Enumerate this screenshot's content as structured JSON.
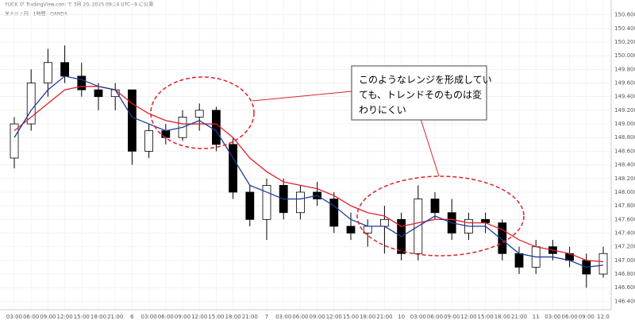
{
  "chart_data": {
    "type": "candlestick",
    "header": [
      "YUGK が TradingView.com で 3月 20, 2025 09:24 UTC+9 に公開",
      "米ドル / 円 · 1時間 · OANDA"
    ],
    "categories": [
      "03:00",
      "06:00",
      "09:00",
      "12:00",
      "15:00",
      "18:00",
      "21:00",
      "6",
      "03:00",
      "06:00",
      "09:00",
      "12:00",
      "15:00",
      "18:00",
      "21:00",
      "7",
      "03:00",
      "06:00",
      "09:00",
      "12:00",
      "15:00",
      "18:00",
      "21:00",
      "10",
      "03:00",
      "06:00",
      "09:00",
      "12:00",
      "15:00",
      "18:00",
      "21:00",
      "11",
      "03:00",
      "06:00",
      "09:00",
      "12:0"
    ],
    "open": [
      148.5,
      149.0,
      149.6,
      149.9,
      149.7,
      149.5,
      149.4,
      149.5,
      148.6,
      148.9,
      148.8,
      149.1,
      149.2,
      148.7,
      148.0,
      147.6,
      148.1,
      147.7,
      148.0,
      147.9,
      147.5,
      147.4,
      147.5,
      147.6,
      147.1,
      147.9,
      147.7,
      147.4,
      147.6,
      147.55,
      147.1,
      146.9,
      147.2,
      147.1,
      147.0,
      146.8
    ],
    "high": [
      149.1,
      149.8,
      150.1,
      150.15,
      149.9,
      149.6,
      149.6,
      149.5,
      149.0,
      149.0,
      149.2,
      149.3,
      149.25,
      148.8,
      148.1,
      148.2,
      148.2,
      148.1,
      148.15,
      148.0,
      147.7,
      147.6,
      147.8,
      147.7,
      148.1,
      148.0,
      147.9,
      147.7,
      147.7,
      147.6,
      147.2,
      147.3,
      147.3,
      147.2,
      147.1,
      147.2
    ],
    "low": [
      148.35,
      148.9,
      149.4,
      149.6,
      149.4,
      149.2,
      149.2,
      148.4,
      148.5,
      148.7,
      148.75,
      148.9,
      148.6,
      147.9,
      147.5,
      147.3,
      147.6,
      147.6,
      147.8,
      147.4,
      147.3,
      147.2,
      147.1,
      147.0,
      147.0,
      147.6,
      147.3,
      147.3,
      147.4,
      147.0,
      146.8,
      146.8,
      147.0,
      146.9,
      146.6,
      146.75
    ],
    "close": [
      149.0,
      149.6,
      149.9,
      149.7,
      149.5,
      149.4,
      149.5,
      148.6,
      148.9,
      148.8,
      149.1,
      149.2,
      148.7,
      148.0,
      147.6,
      148.1,
      147.7,
      148.0,
      147.9,
      147.5,
      147.4,
      147.5,
      147.6,
      147.1,
      147.9,
      147.7,
      147.4,
      147.6,
      147.55,
      147.1,
      146.9,
      147.2,
      147.1,
      147.0,
      146.8,
      147.1
    ],
    "lines": [
      {
        "color": "#e0212b",
        "values": [
          148.9,
          149.1,
          149.3,
          149.5,
          149.55,
          149.55,
          149.5,
          149.3,
          149.15,
          149.05,
          149.0,
          149.0,
          149.0,
          148.8,
          148.5,
          148.3,
          148.15,
          148.1,
          148.05,
          147.95,
          147.8,
          147.7,
          147.65,
          147.5,
          147.55,
          147.6,
          147.6,
          147.55,
          147.55,
          147.45,
          147.3,
          147.2,
          147.15,
          147.1,
          147.0,
          146.98
        ]
      },
      {
        "color": "#1f3c99",
        "values": [
          148.8,
          149.2,
          149.5,
          149.7,
          149.65,
          149.55,
          149.5,
          149.1,
          149.0,
          148.9,
          148.95,
          149.05,
          148.9,
          148.5,
          148.1,
          148.0,
          147.9,
          147.9,
          147.95,
          147.8,
          147.6,
          147.5,
          147.5,
          147.35,
          147.5,
          147.65,
          147.55,
          147.5,
          147.5,
          147.3,
          147.1,
          147.05,
          147.05,
          147.0,
          146.9,
          146.93
        ]
      }
    ],
    "ylim": [
      146.3,
      150.7
    ],
    "yticks": [
      {
        "value": 146.4,
        "label": "146.400"
      },
      {
        "value": 146.6,
        "label": "146.600"
      },
      {
        "value": 146.8,
        "label": "146.800"
      },
      {
        "value": 147.0,
        "label": "147.000"
      },
      {
        "value": 147.2,
        "label": "147.200"
      },
      {
        "value": 147.4,
        "label": "147.400"
      },
      {
        "value": 147.6,
        "label": "147.600"
      },
      {
        "value": 147.8,
        "label": "147.800"
      },
      {
        "value": 148.0,
        "label": "148.000"
      },
      {
        "value": 148.2,
        "label": "148.200"
      },
      {
        "value": 148.4,
        "label": "148.400"
      },
      {
        "value": 148.6,
        "label": "148.600"
      },
      {
        "value": 148.8,
        "label": "148.800"
      },
      {
        "value": 149.0,
        "label": "149.000"
      },
      {
        "value": 149.2,
        "label": "149.200"
      },
      {
        "value": 149.4,
        "label": "149.400"
      },
      {
        "value": 149.6,
        "label": "149.600"
      },
      {
        "value": 149.8,
        "label": "149.800"
      },
      {
        "value": 150.0,
        "label": "150.000"
      },
      {
        "value": 150.2,
        "label": "150.200"
      },
      {
        "value": 150.4,
        "label": "150.400"
      },
      {
        "value": 150.6,
        "label": "150.600"
      }
    ],
    "grid": true,
    "up_color": "#ffffff",
    "down_color": "#000000",
    "annotation": {
      "lines": [
        "このようなレンジを形成してい",
        "ても、トレンドそのものは変",
        "わりにくい"
      ]
    }
  }
}
